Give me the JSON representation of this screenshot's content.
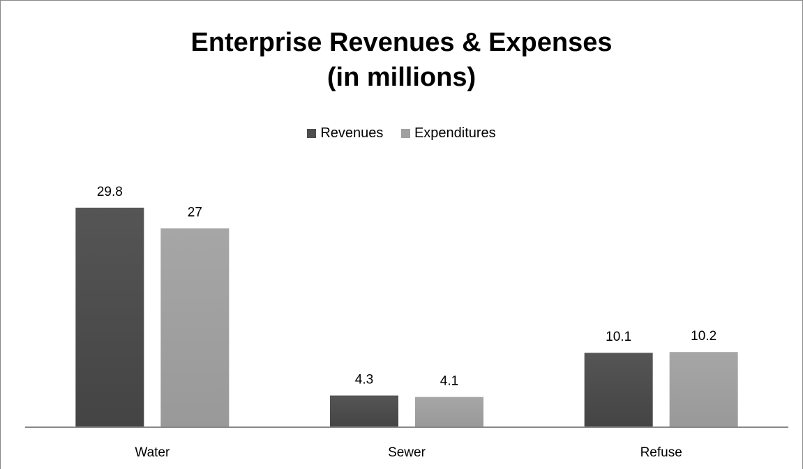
{
  "chart_data": {
    "type": "bar",
    "title": "Enterprise Revenues & Expenses",
    "subtitle": "(in millions)",
    "categories": [
      "Water",
      "Sewer",
      "Refuse"
    ],
    "series": [
      {
        "name": "Revenues",
        "values": [
          29.8,
          4.3,
          10.1
        ],
        "color": "#4d4d4d"
      },
      {
        "name": "Expenditures",
        "values": [
          27,
          4.1,
          10.2
        ],
        "color": "#a0a0a0"
      }
    ],
    "data_labels": [
      [
        "29.8",
        "4.3",
        "10.1"
      ],
      [
        "27",
        "4.1",
        "10.2"
      ]
    ],
    "legend_position": "top",
    "grid": false,
    "ylim": [
      0,
      32
    ]
  }
}
